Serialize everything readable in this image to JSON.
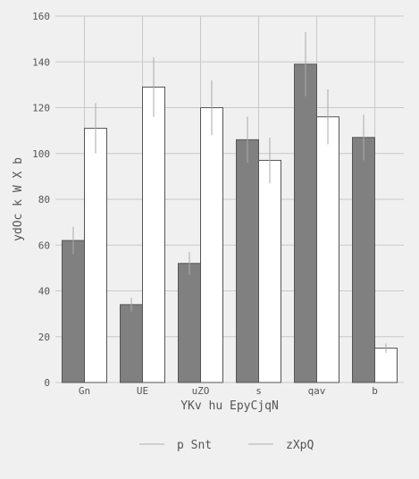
{
  "chart_data": {
    "type": "bar",
    "categories": [
      "Gn",
      "UE",
      "uZO",
      "s",
      "qav",
      "b"
    ],
    "series": [
      {
        "name": "p Snt",
        "values": [
          62,
          34,
          52,
          106,
          139,
          107
        ],
        "errors": [
          6,
          3,
          5,
          10,
          14,
          10
        ],
        "color": "#808080"
      },
      {
        "name": "zXpQ",
        "values": [
          111,
          129,
          120,
          97,
          116,
          15
        ],
        "errors": [
          11,
          13,
          12,
          10,
          12,
          2
        ],
        "color": "#ffffff"
      }
    ],
    "xlabel": "YKv hu EpyCjqN",
    "ylabel": "ydOc k W X b",
    "ylim": [
      0,
      160
    ],
    "yticks": [
      0,
      20,
      40,
      60,
      80,
      100,
      120,
      140,
      160
    ],
    "grid": true,
    "legend_position": "bottom-center"
  },
  "colors": {
    "background": "#f0f0f0",
    "grid": "#c8c8c8",
    "bar_edge": "#555555",
    "error_bar": "#aaaaaa",
    "text": "#555555"
  }
}
